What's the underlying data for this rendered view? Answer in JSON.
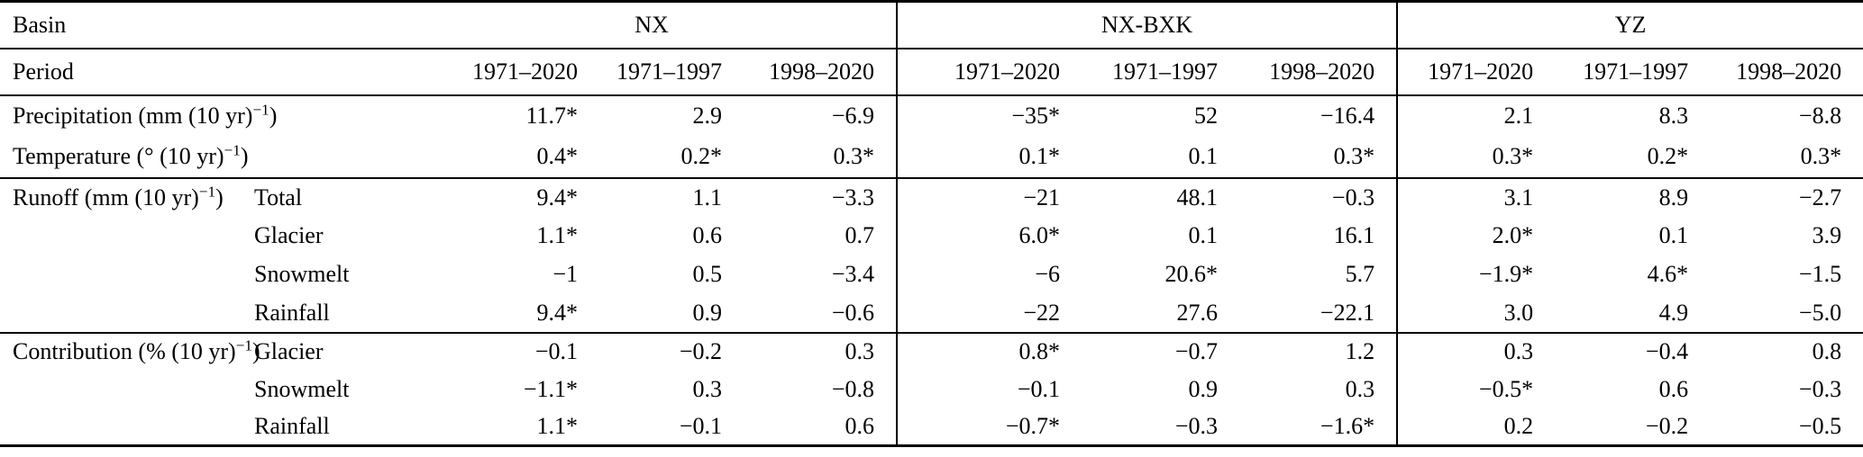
{
  "table": {
    "header": {
      "basin_label": "Basin",
      "period_label": "Period",
      "group_labels": [
        "NX",
        "NX-BXK",
        "YZ"
      ],
      "period_columns": [
        "1971–2020",
        "1971–1997",
        "1998–2020"
      ]
    },
    "sections": [
      {
        "name": "climate",
        "two_col_label": true,
        "rows": [
          {
            "variable": "Precipitation",
            "unit": "mm (10 yr)",
            "exp": "−1",
            "component": "",
            "values": [
              "11.7*",
              "2.9",
              "−6.9",
              "−35*",
              "52",
              "−16.4",
              "2.1",
              "8.3",
              "−8.8"
            ]
          },
          {
            "variable": "Temperature",
            "unit": "° (10 yr)",
            "exp": "−1",
            "component": "",
            "values": [
              "0.4*",
              "0.2*",
              "0.3*",
              "0.1*",
              "0.1",
              "0.3*",
              "0.3*",
              "0.2*",
              "0.3*"
            ]
          }
        ]
      },
      {
        "name": "runoff",
        "two_col_label": false,
        "rows": [
          {
            "variable": "Runoff",
            "unit": "mm (10 yr)",
            "exp": "−1",
            "component": "Total",
            "values": [
              "9.4*",
              "1.1",
              "−3.3",
              "−21",
              "48.1",
              "−0.3",
              "3.1",
              "8.9",
              "−2.7"
            ]
          },
          {
            "variable": "",
            "unit": "",
            "exp": "",
            "component": "Glacier",
            "values": [
              "1.1*",
              "0.6",
              "0.7",
              "6.0*",
              "0.1",
              "16.1",
              "2.0*",
              "0.1",
              "3.9"
            ]
          },
          {
            "variable": "",
            "unit": "",
            "exp": "",
            "component": "Snowmelt",
            "values": [
              "−1",
              "0.5",
              "−3.4",
              "−6",
              "20.6*",
              "5.7",
              "−1.9*",
              "4.6*",
              "−1.5"
            ]
          },
          {
            "variable": "",
            "unit": "",
            "exp": "",
            "component": "Rainfall",
            "values": [
              "9.4*",
              "0.9",
              "−0.6",
              "−22",
              "27.6",
              "−22.1",
              "3.0",
              "4.9",
              "−5.0"
            ]
          }
        ]
      },
      {
        "name": "contribution",
        "two_col_label": false,
        "rows": [
          {
            "variable": "Contribution",
            "unit": "% (10 yr)",
            "exp": "−1",
            "component": "Glacier",
            "values": [
              "−0.1",
              "−0.2",
              "0.3",
              "0.8*",
              "−0.7",
              "1.2",
              "0.3",
              "−0.4",
              "0.8"
            ]
          },
          {
            "variable": "",
            "unit": "",
            "exp": "",
            "component": "Snowmelt",
            "values": [
              "−1.1*",
              "0.3",
              "−0.8",
              "−0.1",
              "0.9",
              "0.3",
              "−0.5*",
              "0.6",
              "−0.3"
            ]
          },
          {
            "variable": "",
            "unit": "",
            "exp": "",
            "component": "Rainfall",
            "values": [
              "1.1*",
              "−0.1",
              "0.6",
              "−0.7*",
              "−0.3",
              "−1.6*",
              "0.2",
              "−0.2",
              "−0.5"
            ]
          }
        ]
      }
    ]
  }
}
